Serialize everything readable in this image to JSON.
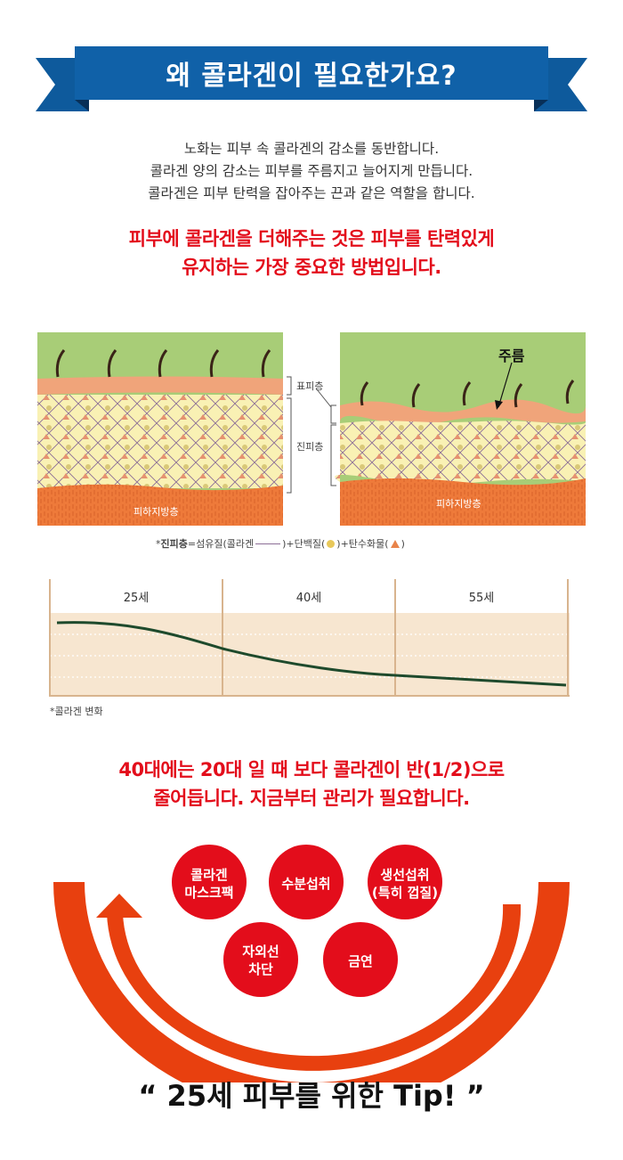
{
  "banner": {
    "title": "왜 콜라겐이 필요한가요?"
  },
  "intro": {
    "lines": [
      "노화는 피부 속 콜라겐의 감소를 동반합니다.",
      "콜라겐 양의 감소는 피부를 주름지고 늘어지게 만듭니다.",
      "콜라겐은 피부 탄력을 잡아주는 끈과 같은 역할을 합니다."
    ]
  },
  "emphasis1": {
    "lines": [
      "피부에 콜라겐을 더해주는 것은 피부를 탄력있게",
      "유지하는 가장 중요한 방법입니다."
    ]
  },
  "skin_diagram": {
    "epidermis_label": "표피층",
    "dermis_label": "진피층",
    "subcutaneous_label": "피하지방층",
    "wrinkle_label": "주름",
    "legend": {
      "prefix": "*",
      "dermis_bold": "진피층",
      "eq": "=섬유질(콜라겐",
      "protein": ")+단백질(",
      "carb": ")+탄수화물(",
      "end": ")"
    }
  },
  "collagen_chart": {
    "ages": [
      "25세",
      "40세",
      "55세"
    ],
    "caption": "*콜라겐 변화"
  },
  "emphasis2": {
    "lines": [
      "40대에는 20대 일 때 보다 콜라겐이 반(1/2)으로",
      "줄어듭니다. 지금부터 관리가 필요합니다."
    ]
  },
  "tips": {
    "items": [
      [
        "콜라겐",
        "마스크팩"
      ],
      [
        "수분섭취"
      ],
      [
        "생선섭취",
        "(특히 껍질)"
      ],
      [
        "자외선",
        "차단"
      ],
      [
        "금연"
      ]
    ],
    "footer": "“ 25세 피부를 위한 Tip! ”"
  },
  "colors": {
    "banner": "#0e5a9c",
    "banner_dark": "#0a3d6e",
    "accent_red": "#e30d1b",
    "skin_green": "#a8cd77",
    "dermis_yellow": "#f9f1b4",
    "fat_orange": "#ee7a3a"
  }
}
